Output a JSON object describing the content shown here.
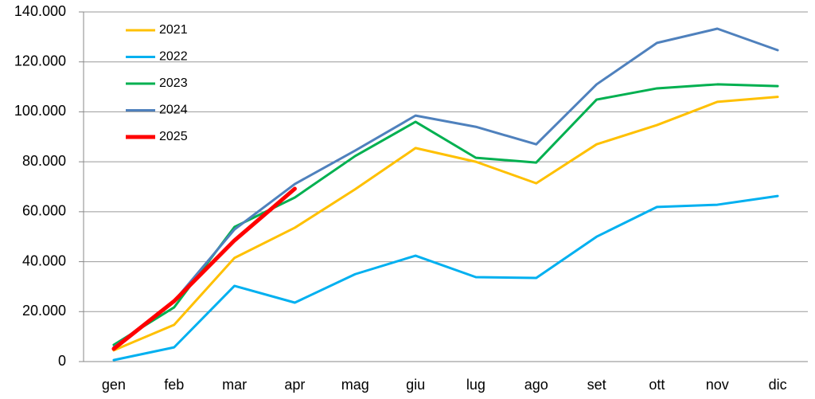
{
  "chart_data": {
    "type": "line",
    "categories": [
      "gen",
      "feb",
      "mar",
      "apr",
      "mag",
      "giu",
      "lug",
      "ago",
      "set",
      "ott",
      "nov",
      "dic"
    ],
    "series": [
      {
        "name": "2021",
        "color": "#ffc000",
        "values": [
          4500,
          14700,
          41500,
          53600,
          69000,
          85500,
          80000,
          71400,
          87000,
          94700,
          104000,
          106000
        ]
      },
      {
        "name": "2022",
        "color": "#00b0f0",
        "values": [
          600,
          5700,
          30300,
          23600,
          35000,
          42400,
          33800,
          33500,
          50000,
          61900,
          62800,
          66300
        ]
      },
      {
        "name": "2023",
        "color": "#00b050",
        "values": [
          6700,
          21700,
          53900,
          65700,
          82300,
          96000,
          81600,
          79700,
          104900,
          109400,
          111000,
          110300
        ]
      },
      {
        "name": "2024",
        "color": "#4f81bd",
        "values": [
          5700,
          24200,
          52900,
          71100,
          84500,
          98500,
          94000,
          87000,
          111000,
          127600,
          133300,
          124700
        ]
      },
      {
        "name": "2025",
        "color": "#ff0000",
        "values": [
          5100,
          24200,
          48500,
          69200,
          null,
          null,
          null,
          null,
          null,
          null,
          null,
          null
        ]
      }
    ],
    "ylim": [
      0,
      140000
    ],
    "yticks": [
      0,
      {
        "value": 20000,
        "label": "20.000"
      },
      {
        "value": 40000,
        "label": "40.000"
      },
      {
        "value": 60000,
        "label": "60.000"
      },
      {
        "value": 80000,
        "label": "80.000"
      },
      {
        "value": 100000,
        "label": "100.000"
      },
      {
        "value": 120000,
        "label": "120.000"
      },
      {
        "value": 140000,
        "label": "140.000"
      }
    ],
    "grid": true,
    "legend": "upper left"
  }
}
